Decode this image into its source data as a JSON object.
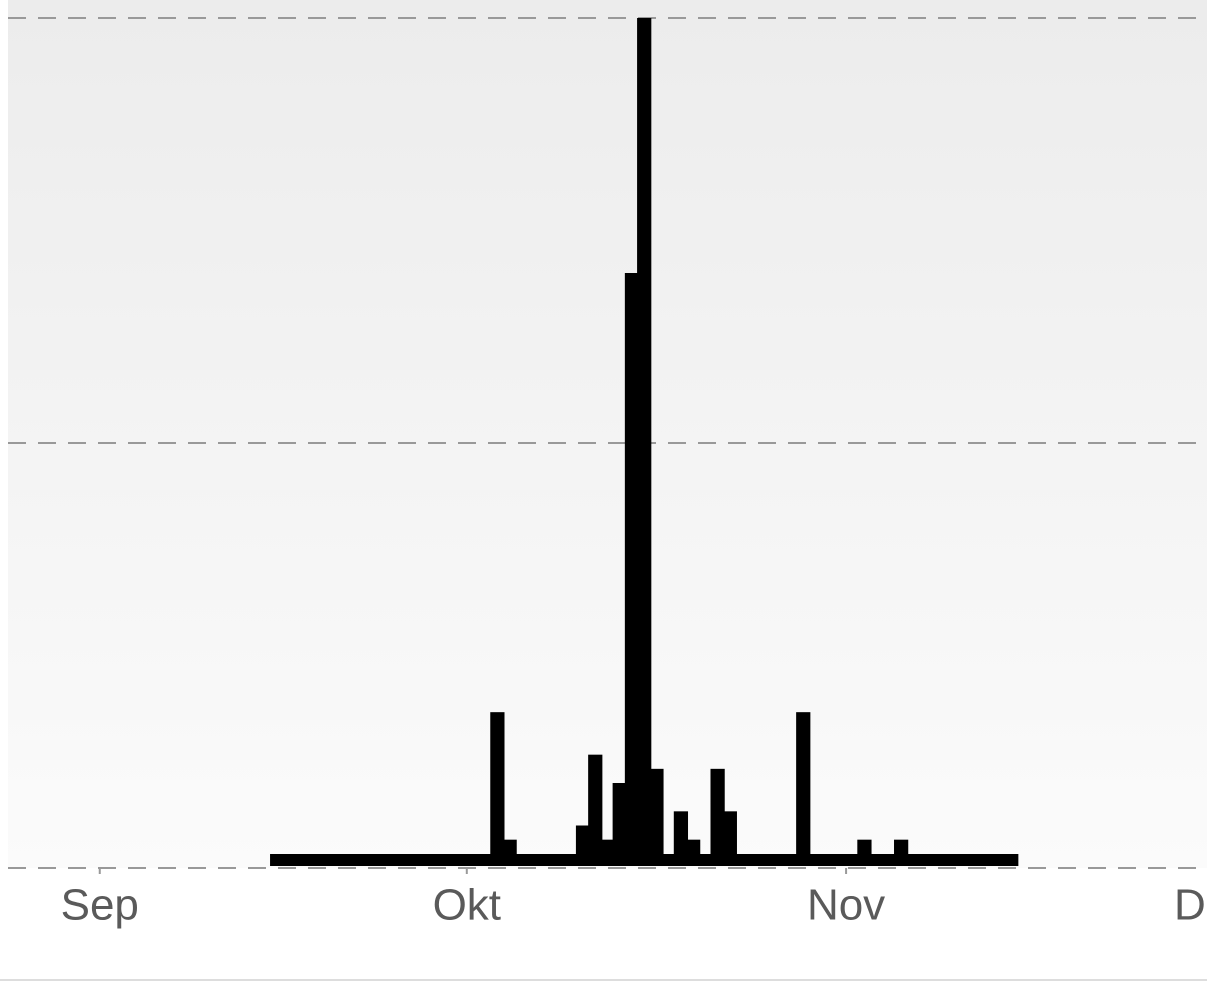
{
  "chart_data": {
    "type": "bar",
    "color": "#000000",
    "grid": true,
    "xlim": [
      -7.5,
      90.5
    ],
    "xticks": [
      {
        "value": 0,
        "label": "Sep"
      },
      {
        "value": 30,
        "label": "Okt"
      },
      {
        "value": 61,
        "label": "Nov"
      },
      {
        "value": 91,
        "label": "Dez"
      }
    ],
    "ylim": [
      0,
      30
    ],
    "yticks": [
      0,
      15,
      30
    ],
    "x": [
      14,
      15,
      16,
      17,
      18,
      19,
      20,
      21,
      22,
      23,
      24,
      25,
      26,
      27,
      28,
      29,
      30,
      31,
      32,
      33,
      34,
      35,
      36,
      37,
      38,
      39,
      40,
      41,
      42,
      43,
      44,
      45,
      46,
      47,
      48,
      49,
      50,
      51,
      52,
      53,
      54,
      55,
      56,
      57,
      58,
      59,
      60,
      61,
      62,
      63,
      64,
      65,
      66,
      67,
      68,
      69,
      70,
      71,
      72,
      73,
      74
    ],
    "values": [
      0,
      0,
      0,
      0,
      0,
      0,
      0,
      0,
      0,
      0,
      0,
      0,
      0,
      0,
      0,
      0,
      0,
      0,
      5.5,
      1,
      0,
      0,
      0,
      0,
      0,
      1.5,
      4,
      1,
      3,
      21,
      30,
      3.5,
      0,
      2,
      1,
      0,
      3.5,
      2,
      0,
      0,
      0,
      0,
      0,
      5.5,
      0,
      0,
      0,
      0,
      1,
      0,
      0,
      1,
      0,
      0,
      0,
      0,
      0,
      0,
      0,
      0,
      0
    ]
  }
}
